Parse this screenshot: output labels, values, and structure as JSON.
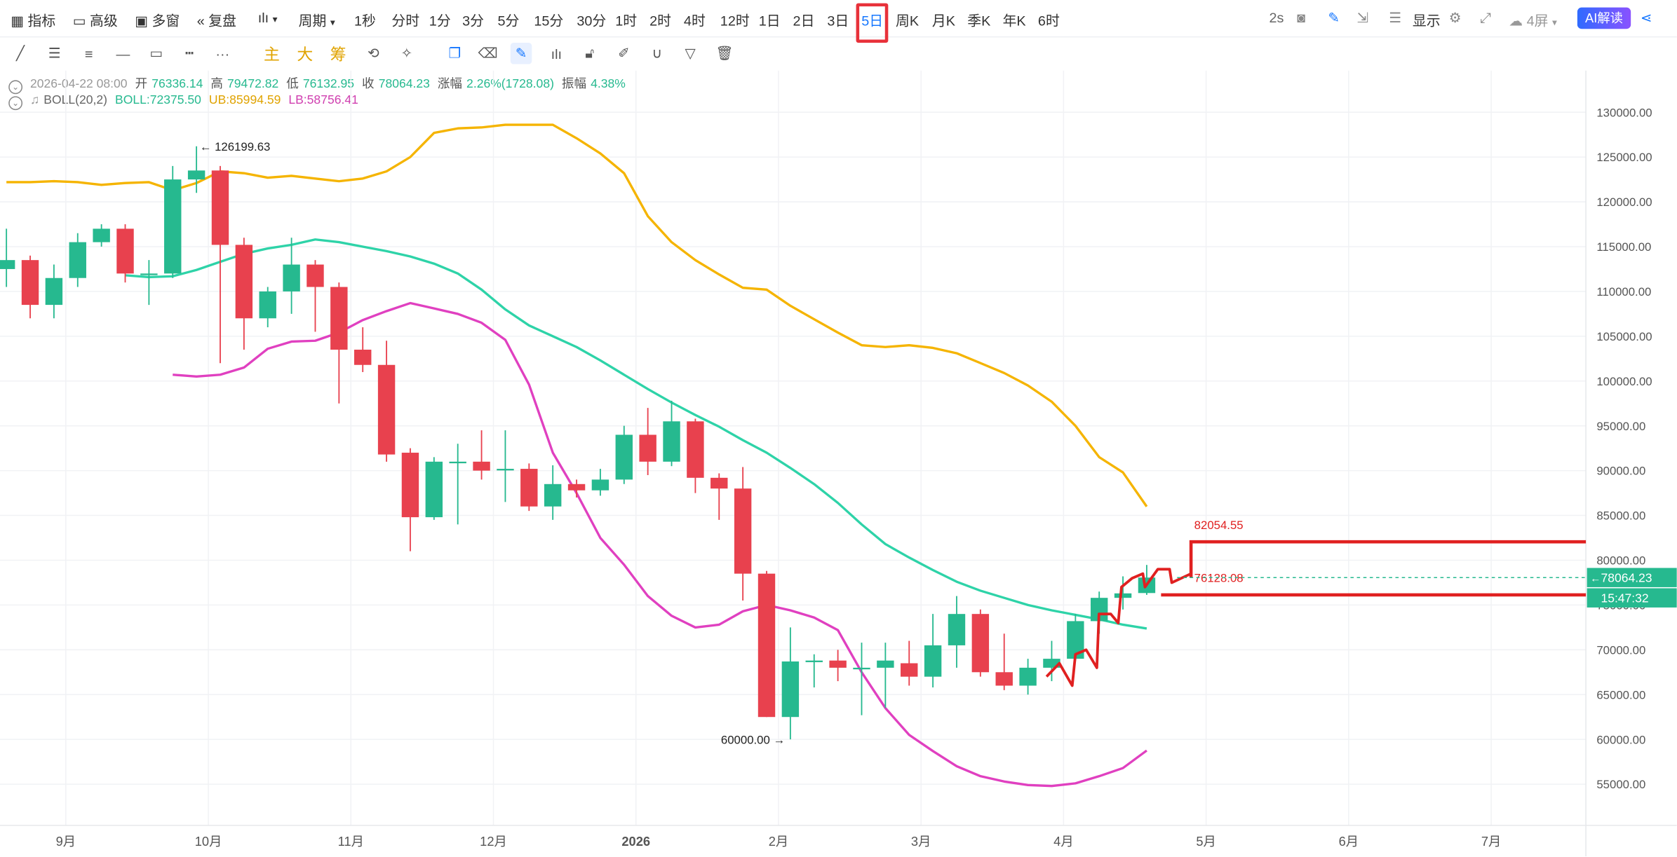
{
  "toolbar": {
    "indicators": "指标",
    "advanced": "高级",
    "multi_window": "多窗",
    "replay": "复盘",
    "period": "周期",
    "intervals": [
      "1秒",
      "分时",
      "1分",
      "3分",
      "5分",
      "15分",
      "30分",
      "1时",
      "2时",
      "4时",
      "12时",
      "1日",
      "2日",
      "3日",
      "5日",
      "周K",
      "月K",
      "季K",
      "年K",
      "6时"
    ],
    "active_interval": "5日",
    "refresh": "2s",
    "display": "显示",
    "screens": "4屏",
    "ai_button": "AI解读"
  },
  "drawbar": {
    "tools": [
      "line-tool",
      "parallel-tool",
      "hlines-tool",
      "hline-tool",
      "rect-tool",
      "ruler-tool",
      "more-tool"
    ],
    "chip_labels": [
      "主",
      "大",
      "筹"
    ]
  },
  "info": {
    "datetime": "2026-04-22 08:00",
    "open_label": "开",
    "open": "76336.14",
    "high_label": "高",
    "high": "79472.82",
    "low_label": "低",
    "low": "76132.95",
    "close_label": "收",
    "close": "78064.23",
    "change_label": "涨幅",
    "change": "2.26%(1728.08)",
    "amplitude_label": "振幅",
    "amplitude": "4.38%",
    "boll_name": "BOLL(20,2)",
    "boll": "BOLL:72375.50",
    "ub": "UB:85994.59",
    "lb": "LB:58756.41"
  },
  "colors": {
    "up": "#26b98f",
    "down": "#e8414e",
    "mid": "#2ed3a8",
    "upper": "#f5b400",
    "lower": "#e040c0",
    "annot": "#e02020"
  },
  "chart_data": {
    "type": "candlestick",
    "title": "",
    "ylim": [
      50000,
      132000
    ],
    "yticks": [
      55000,
      60000,
      65000,
      70000,
      75000,
      80000,
      85000,
      90000,
      95000,
      100000,
      105000,
      110000,
      115000,
      120000,
      125000,
      130000
    ],
    "ytick_labels": [
      "55000.00",
      "60000.00",
      "65000.00",
      "70000.00",
      "75000.00",
      "80000.00",
      "85000.00",
      "90000.00",
      "95000.00",
      "100000.00",
      "105000.00",
      "110000.00",
      "115000.00",
      "120000.00",
      "125000.00",
      "130000.00"
    ],
    "xticks": [
      {
        "label": "9月",
        "i": 2.5
      },
      {
        "label": "10月",
        "i": 8.5
      },
      {
        "label": "11月",
        "i": 14.5
      },
      {
        "label": "12月",
        "i": 20.5
      },
      {
        "label": "2026",
        "i": 26.5
      },
      {
        "label": "2月",
        "i": 32.5
      },
      {
        "label": "3月",
        "i": 38.5
      },
      {
        "label": "4月",
        "i": 44.5
      },
      {
        "label": "5月",
        "i": 50.5
      },
      {
        "label": "6月",
        "i": 56.5
      },
      {
        "label": "7月",
        "i": 62.5
      }
    ],
    "candles": [
      {
        "o": 112500,
        "h": 117000,
        "l": 110500,
        "c": 113500
      },
      {
        "o": 113500,
        "h": 114000,
        "l": 107000,
        "c": 108500
      },
      {
        "o": 108500,
        "h": 113000,
        "l": 107000,
        "c": 111500
      },
      {
        "o": 111500,
        "h": 116500,
        "l": 110500,
        "c": 115500
      },
      {
        "o": 115500,
        "h": 117500,
        "l": 115000,
        "c": 117000
      },
      {
        "o": 117000,
        "h": 117500,
        "l": 111000,
        "c": 112000
      },
      {
        "o": 112000,
        "h": 113500,
        "l": 108500,
        "c": 112000
      },
      {
        "o": 112000,
        "h": 124000,
        "l": 111500,
        "c": 122500
      },
      {
        "o": 122500,
        "h": 126199.63,
        "l": 121000,
        "c": 123500
      },
      {
        "o": 123500,
        "h": 124000,
        "l": 102000,
        "c": 115200
      },
      {
        "o": 115200,
        "h": 116000,
        "l": 103500,
        "c": 107000
      },
      {
        "o": 107000,
        "h": 110500,
        "l": 106000,
        "c": 110000
      },
      {
        "o": 110000,
        "h": 116000,
        "l": 107500,
        "c": 113000
      },
      {
        "o": 113000,
        "h": 113500,
        "l": 105500,
        "c": 110500
      },
      {
        "o": 110500,
        "h": 111000,
        "l": 97500,
        "c": 103500
      },
      {
        "o": 103500,
        "h": 106000,
        "l": 101000,
        "c": 101800
      },
      {
        "o": 101800,
        "h": 104500,
        "l": 91000,
        "c": 91800
      },
      {
        "o": 92000,
        "h": 92500,
        "l": 81000,
        "c": 84800
      },
      {
        "o": 84800,
        "h": 91500,
        "l": 84500,
        "c": 91000
      },
      {
        "o": 91000,
        "h": 93000,
        "l": 84000,
        "c": 91000
      },
      {
        "o": 91000,
        "h": 94500,
        "l": 89000,
        "c": 90000
      },
      {
        "o": 90200,
        "h": 94500,
        "l": 86500,
        "c": 90200
      },
      {
        "o": 90200,
        "h": 90800,
        "l": 85500,
        "c": 86000
      },
      {
        "o": 86000,
        "h": 90600,
        "l": 84500,
        "c": 88500
      },
      {
        "o": 88500,
        "h": 89000,
        "l": 87000,
        "c": 87800
      },
      {
        "o": 87800,
        "h": 90200,
        "l": 87200,
        "c": 89000
      },
      {
        "o": 89000,
        "h": 95000,
        "l": 88500,
        "c": 94000
      },
      {
        "o": 94000,
        "h": 97000,
        "l": 89500,
        "c": 91000
      },
      {
        "o": 91000,
        "h": 97800,
        "l": 90500,
        "c": 95500
      },
      {
        "o": 95500,
        "h": 95800,
        "l": 87500,
        "c": 89200
      },
      {
        "o": 89200,
        "h": 89700,
        "l": 84500,
        "c": 88000
      },
      {
        "o": 88000,
        "h": 90400,
        "l": 75500,
        "c": 78500
      },
      {
        "o": 78500,
        "h": 78800,
        "l": 62500,
        "c": 62500
      },
      {
        "o": 62500,
        "h": 72500,
        "l": 60000,
        "c": 68700
      },
      {
        "o": 68800,
        "h": 69500,
        "l": 65800,
        "c": 68800
      },
      {
        "o": 68800,
        "h": 70000,
        "l": 66500,
        "c": 68000
      },
      {
        "o": 68000,
        "h": 70800,
        "l": 62700,
        "c": 68000
      },
      {
        "o": 68000,
        "h": 70800,
        "l": 63500,
        "c": 68800
      },
      {
        "o": 68500,
        "h": 71000,
        "l": 66000,
        "c": 67000
      },
      {
        "o": 67000,
        "h": 74000,
        "l": 65800,
        "c": 70500
      },
      {
        "o": 70500,
        "h": 76000,
        "l": 68000,
        "c": 74000
      },
      {
        "o": 74000,
        "h": 74500,
        "l": 67000,
        "c": 67500
      },
      {
        "o": 67500,
        "h": 71800,
        "l": 65500,
        "c": 66000
      },
      {
        "o": 66000,
        "h": 69000,
        "l": 65000,
        "c": 68000
      },
      {
        "o": 68000,
        "h": 71000,
        "l": 66500,
        "c": 69000
      },
      {
        "o": 69000,
        "h": 74000,
        "l": 68800,
        "c": 73200
      },
      {
        "o": 73200,
        "h": 76500,
        "l": 71800,
        "c": 75800
      },
      {
        "o": 75800,
        "h": 78200,
        "l": 74500,
        "c": 76300
      },
      {
        "o": 76336.14,
        "h": 79472.82,
        "l": 76132.95,
        "c": 78064.23
      }
    ],
    "boll_mid": [
      111800,
      111600,
      111700,
      112400,
      113300,
      114200,
      114800,
      115200,
      115800,
      115500,
      115000,
      114500,
      113900,
      113100,
      112000,
      110200,
      108000,
      106200,
      105000,
      103800,
      102300,
      100700,
      99100,
      97600,
      96200,
      94900,
      93400,
      92000,
      90300,
      88500,
      86400,
      84000,
      81800,
      80300,
      78900,
      77600,
      76600,
      75800,
      75000,
      74400,
      73900,
      73400,
      72800,
      72375.5
    ],
    "boll_mid_start": 5,
    "boll_upper": [
      122200,
      122200,
      122300,
      122200,
      121900,
      122100,
      122200,
      121300,
      122100,
      123400,
      123200,
      122700,
      122900,
      122600,
      122300,
      122600,
      123400,
      125000,
      127700,
      128200,
      128300,
      128600,
      128600,
      128600,
      127100,
      125400,
      123200,
      118400,
      115500,
      113500,
      111900,
      110400,
      110200,
      108400,
      106900,
      105400,
      104000,
      103800,
      104000,
      103700,
      103100,
      102000,
      100900,
      99500,
      97700,
      95000,
      91500,
      89800,
      85994.59
    ],
    "boll_lower": [
      100700,
      100500,
      100700,
      101500,
      103600,
      104400,
      104500,
      105400,
      106800,
      107800,
      108700,
      108100,
      107500,
      106500,
      104600,
      99600,
      92000,
      87500,
      82500,
      79500,
      76000,
      73800,
      72500,
      72800,
      74300,
      75000,
      74400,
      73600,
      72200,
      67500,
      63500,
      60500,
      58700,
      57000,
      55900,
      55300,
      54900,
      54800,
      55100,
      55900,
      56800,
      58756.41
    ],
    "boll_lower_start": 7,
    "annotations": {
      "max_label": "126199.63",
      "min_label": "60000.00",
      "level_high": "82054.55",
      "level_low": "76128.08",
      "current_price": "78064.23",
      "countdown": "15:47:32"
    }
  }
}
